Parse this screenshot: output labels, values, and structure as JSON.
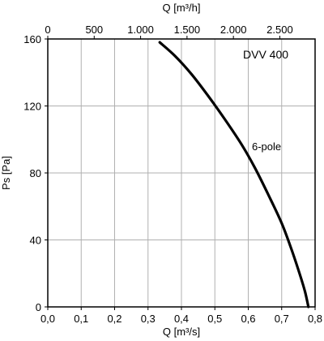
{
  "chart_data": {
    "type": "line",
    "title": "DVV 400",
    "xlabel": "Q [m³/s]",
    "ylabel": "Ps [Pa]",
    "x2label": "Q [m³/h]",
    "xlim": [
      0,
      0.8
    ],
    "ylim": [
      0,
      160
    ],
    "x2lim": [
      0,
      2880
    ],
    "xticks": [
      0,
      0.1,
      0.2,
      0.3,
      0.4,
      0.5,
      0.6,
      0.7,
      0.8
    ],
    "xtick_labels": [
      "0,0",
      "0,1",
      "0,2",
      "0,3",
      "0,4",
      "0,5",
      "0,6",
      "0,7",
      "0,8"
    ],
    "yticks": [
      0,
      40,
      80,
      120,
      160
    ],
    "ytick_labels": [
      "0",
      "40",
      "80",
      "120",
      "160"
    ],
    "x2ticks": [
      0,
      500,
      1000,
      1500,
      2000,
      2500
    ],
    "x2tick_labels": [
      "0",
      "500",
      "1.000",
      "1.500",
      "2.000",
      "2.500"
    ],
    "grid": true,
    "series": [
      {
        "name": "6-pole",
        "x": [
          0.335,
          0.38,
          0.43,
          0.48,
          0.53,
          0.58,
          0.62,
          0.66,
          0.7,
          0.73,
          0.755,
          0.77,
          0.78
        ],
        "y": [
          158,
          150,
          139,
          126,
          112,
          97,
          83,
          67,
          50,
          34,
          19,
          9,
          0
        ]
      }
    ],
    "annotations": [
      {
        "text": "6-pole",
        "x": 0.615,
        "y": 94
      }
    ],
    "colors": {
      "line": "#000000",
      "grid": "#b0b0b0",
      "axis": "#000000"
    }
  }
}
